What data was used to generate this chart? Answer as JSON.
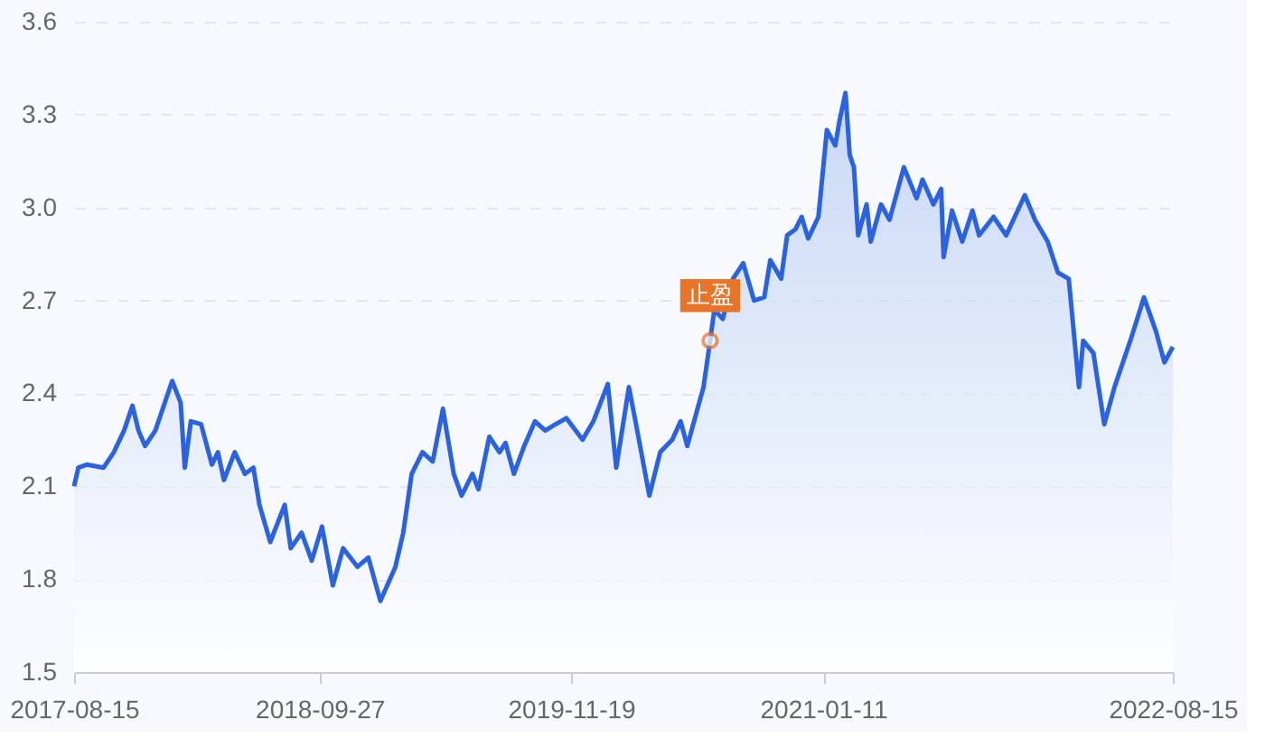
{
  "chart_data": {
    "type": "area",
    "x": [
      "2017-08-15",
      "2017-08-22",
      "2017-09-05",
      "2017-10-03",
      "2017-10-20",
      "2017-11-06",
      "2017-11-20",
      "2017-11-30",
      "2017-12-11",
      "2017-12-28",
      "2018-01-25",
      "2018-02-08",
      "2018-02-15",
      "2018-02-25",
      "2018-03-14",
      "2018-04-01",
      "2018-04-11",
      "2018-04-21",
      "2018-05-09",
      "2018-05-26",
      "2018-06-09",
      "2018-06-19",
      "2018-07-07",
      "2018-07-31",
      "2018-08-10",
      "2018-08-28",
      "2018-09-14",
      "2018-10-01",
      "2018-10-19",
      "2018-11-05",
      "2018-11-29",
      "2018-12-17",
      "2019-01-06",
      "2019-01-31",
      "2019-02-13",
      "2019-02-27",
      "2019-03-17",
      "2019-04-03",
      "2019-04-20",
      "2019-05-08",
      "2019-05-21",
      "2019-06-08",
      "2019-06-18",
      "2019-07-06",
      "2019-07-23",
      "2019-08-02",
      "2019-08-16",
      "2019-09-02",
      "2019-09-20",
      "2019-10-07",
      "2019-10-24",
      "2019-11-11",
      "2019-12-08",
      "2019-12-26",
      "2020-01-19",
      "2020-02-02",
      "2020-02-23",
      "2020-03-04",
      "2020-03-28",
      "2020-04-15",
      "2020-05-05",
      "2020-05-19",
      "2020-05-30",
      "2020-06-16",
      "2020-06-26",
      "2020-07-07",
      "2020-07-14",
      "2020-07-28",
      "2020-08-14",
      "2020-08-31",
      "2020-09-18",
      "2020-10-05",
      "2020-10-15",
      "2020-11-02",
      "2020-11-12",
      "2020-11-26",
      "2020-12-06",
      "2020-12-17",
      "2021-01-03",
      "2021-01-17",
      "2021-01-31",
      "2021-02-07",
      "2021-02-17",
      "2021-02-24",
      "2021-03-03",
      "2021-03-10",
      "2021-03-24",
      "2021-03-31",
      "2021-04-17",
      "2021-05-01",
      "2021-05-11",
      "2021-05-25",
      "2021-06-15",
      "2021-06-25",
      "2021-07-13",
      "2021-07-26",
      "2021-07-30",
      "2021-08-13",
      "2021-08-30",
      "2021-09-16",
      "2021-09-27",
      "2021-10-21",
      "2021-11-11",
      "2021-12-12",
      "2021-12-29",
      "2022-01-19",
      "2022-02-05",
      "2022-02-23",
      "2022-03-12",
      "2022-03-19",
      "2022-04-05",
      "2022-04-23",
      "2022-05-10",
      "2022-06-07",
      "2022-06-28",
      "2022-07-18",
      "2022-08-01",
      "2022-08-15"
    ],
    "series": [
      {
        "color": "#2a62e0",
        "values": [
          2.1,
          2.16,
          2.17,
          2.16,
          2.21,
          2.28,
          2.36,
          2.28,
          2.23,
          2.28,
          2.44,
          2.37,
          2.16,
          2.31,
          2.3,
          2.17,
          2.21,
          2.12,
          2.21,
          2.14,
          2.16,
          2.04,
          1.92,
          2.04,
          1.9,
          1.95,
          1.86,
          1.97,
          1.78,
          1.9,
          1.84,
          1.87,
          1.73,
          1.84,
          1.95,
          2.14,
          2.21,
          2.18,
          2.35,
          2.14,
          2.07,
          2.14,
          2.09,
          2.26,
          2.21,
          2.24,
          2.14,
          2.23,
          2.31,
          2.28,
          2.3,
          2.32,
          2.25,
          2.31,
          2.43,
          2.16,
          2.42,
          2.32,
          2.07,
          2.21,
          2.25,
          2.31,
          2.23,
          2.35,
          2.42,
          2.57,
          2.67,
          2.64,
          2.77,
          2.82,
          2.7,
          2.71,
          2.83,
          2.77,
          2.91,
          2.93,
          2.97,
          2.9,
          2.97,
          3.25,
          3.2,
          3.28,
          3.37,
          3.17,
          3.13,
          2.91,
          3.01,
          2.89,
          3.01,
          2.96,
          3.03,
          3.13,
          3.03,
          3.09,
          3.01,
          3.06,
          2.84,
          2.99,
          2.89,
          2.99,
          2.91,
          2.97,
          2.91,
          3.04,
          2.96,
          2.89,
          2.79,
          2.77,
          2.42,
          2.57,
          2.53,
          2.3,
          2.42,
          2.58,
          2.71,
          2.6,
          2.5,
          2.55
        ]
      }
    ],
    "xlim": [
      "2017-08-15",
      "2022-08-15"
    ],
    "xticks": [
      "2017-08-15",
      "2018-09-27",
      "2019-11-19",
      "2021-01-11",
      "2022-08-15"
    ],
    "ylim": [
      1.5,
      3.6
    ],
    "yticks": [
      1.5,
      1.8,
      2.1,
      2.4,
      2.7,
      {
        "value": 3,
        "label": "3.0"
      },
      3.3,
      3.6
    ],
    "grid": "y",
    "marker": "none",
    "line_style": "solid",
    "annotations": [
      {
        "text": "止盈",
        "x": "2020-07-07",
        "y": 2.57
      }
    ]
  }
}
